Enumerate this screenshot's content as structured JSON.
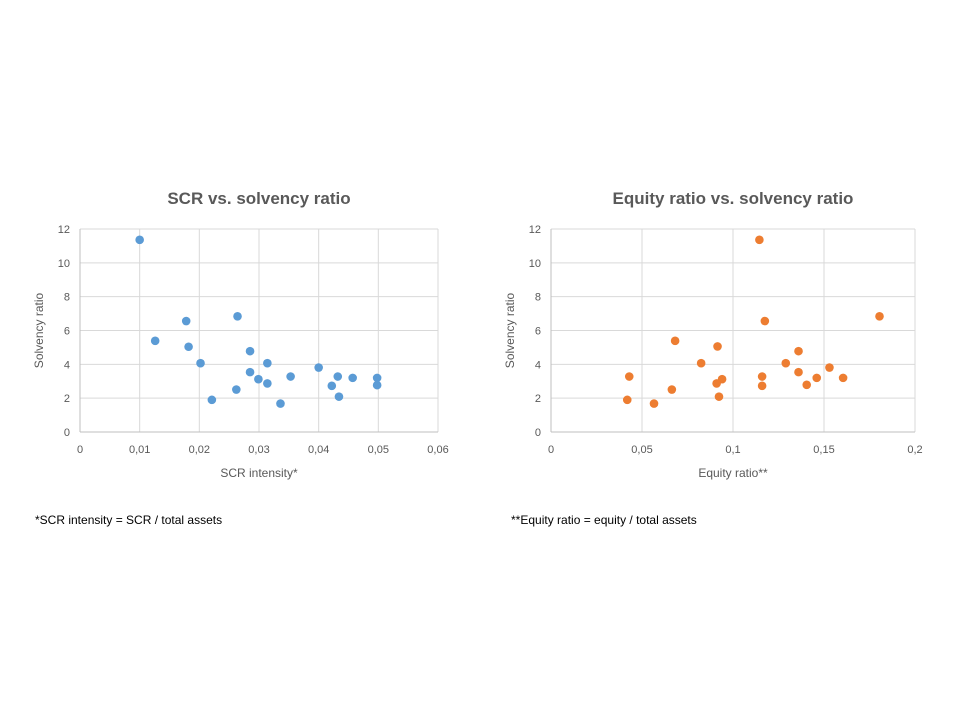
{
  "chart_data": [
    {
      "type": "scatter",
      "title": "SCR vs. solvency ratio",
      "xlabel": "SCR intensity*",
      "ylabel": "Solvency ratio",
      "xlim": [
        0,
        0.06
      ],
      "ylim": [
        0,
        12
      ],
      "xticks": [
        "0",
        "0,01",
        "0,02",
        "0,03",
        "0,04",
        "0,05",
        "0,06"
      ],
      "yticks": [
        "0",
        "2",
        "4",
        "6",
        "8",
        "10",
        "12"
      ],
      "grid": true,
      "color": "#5B9BD5",
      "points": [
        [
          0.01,
          11.36
        ],
        [
          0.0126,
          5.39
        ],
        [
          0.0178,
          6.56
        ],
        [
          0.0182,
          5.04
        ],
        [
          0.0202,
          4.07
        ],
        [
          0.0221,
          1.9
        ],
        [
          0.0262,
          2.51
        ],
        [
          0.0264,
          6.84
        ],
        [
          0.0285,
          4.78
        ],
        [
          0.0285,
          3.54
        ],
        [
          0.0299,
          3.12
        ],
        [
          0.0314,
          4.07
        ],
        [
          0.0314,
          2.87
        ],
        [
          0.0336,
          1.68
        ],
        [
          0.0353,
          3.28
        ],
        [
          0.04,
          3.81
        ],
        [
          0.0422,
          2.73
        ],
        [
          0.0432,
          3.28
        ],
        [
          0.0434,
          2.09
        ],
        [
          0.0457,
          3.2
        ],
        [
          0.0498,
          3.2
        ],
        [
          0.0498,
          2.77
        ]
      ],
      "footnote": "*SCR intensity = SCR / total assets"
    },
    {
      "type": "scatter",
      "title": "Equity ratio vs. solvency ratio",
      "xlabel": "Equity ratio**",
      "ylabel": "Solvency ratio",
      "xlim": [
        0,
        0.2
      ],
      "ylim": [
        0,
        12
      ],
      "xticks": [
        "0",
        "0,05",
        "0,1",
        "0,15",
        "0,2"
      ],
      "yticks": [
        "0",
        "2",
        "4",
        "6",
        "8",
        "10",
        "12"
      ],
      "grid": true,
      "color": "#ED7D31",
      "points": [
        [
          0.1145,
          11.36
        ],
        [
          0.1175,
          6.56
        ],
        [
          0.1805,
          6.84
        ],
        [
          0.0682,
          5.39
        ],
        [
          0.0915,
          5.06
        ],
        [
          0.136,
          4.78
        ],
        [
          0.0825,
          4.07
        ],
        [
          0.129,
          4.07
        ],
        [
          0.153,
          3.81
        ],
        [
          0.043,
          3.28
        ],
        [
          0.116,
          3.28
        ],
        [
          0.136,
          3.54
        ],
        [
          0.094,
          3.12
        ],
        [
          0.091,
          2.87
        ],
        [
          0.146,
          3.2
        ],
        [
          0.1605,
          3.2
        ],
        [
          0.116,
          2.73
        ],
        [
          0.1405,
          2.79
        ],
        [
          0.0664,
          2.51
        ],
        [
          0.0923,
          2.09
        ],
        [
          0.0419,
          1.9
        ],
        [
          0.0566,
          1.68
        ]
      ],
      "footnote": "**Equity ratio = equity / total assets"
    }
  ]
}
